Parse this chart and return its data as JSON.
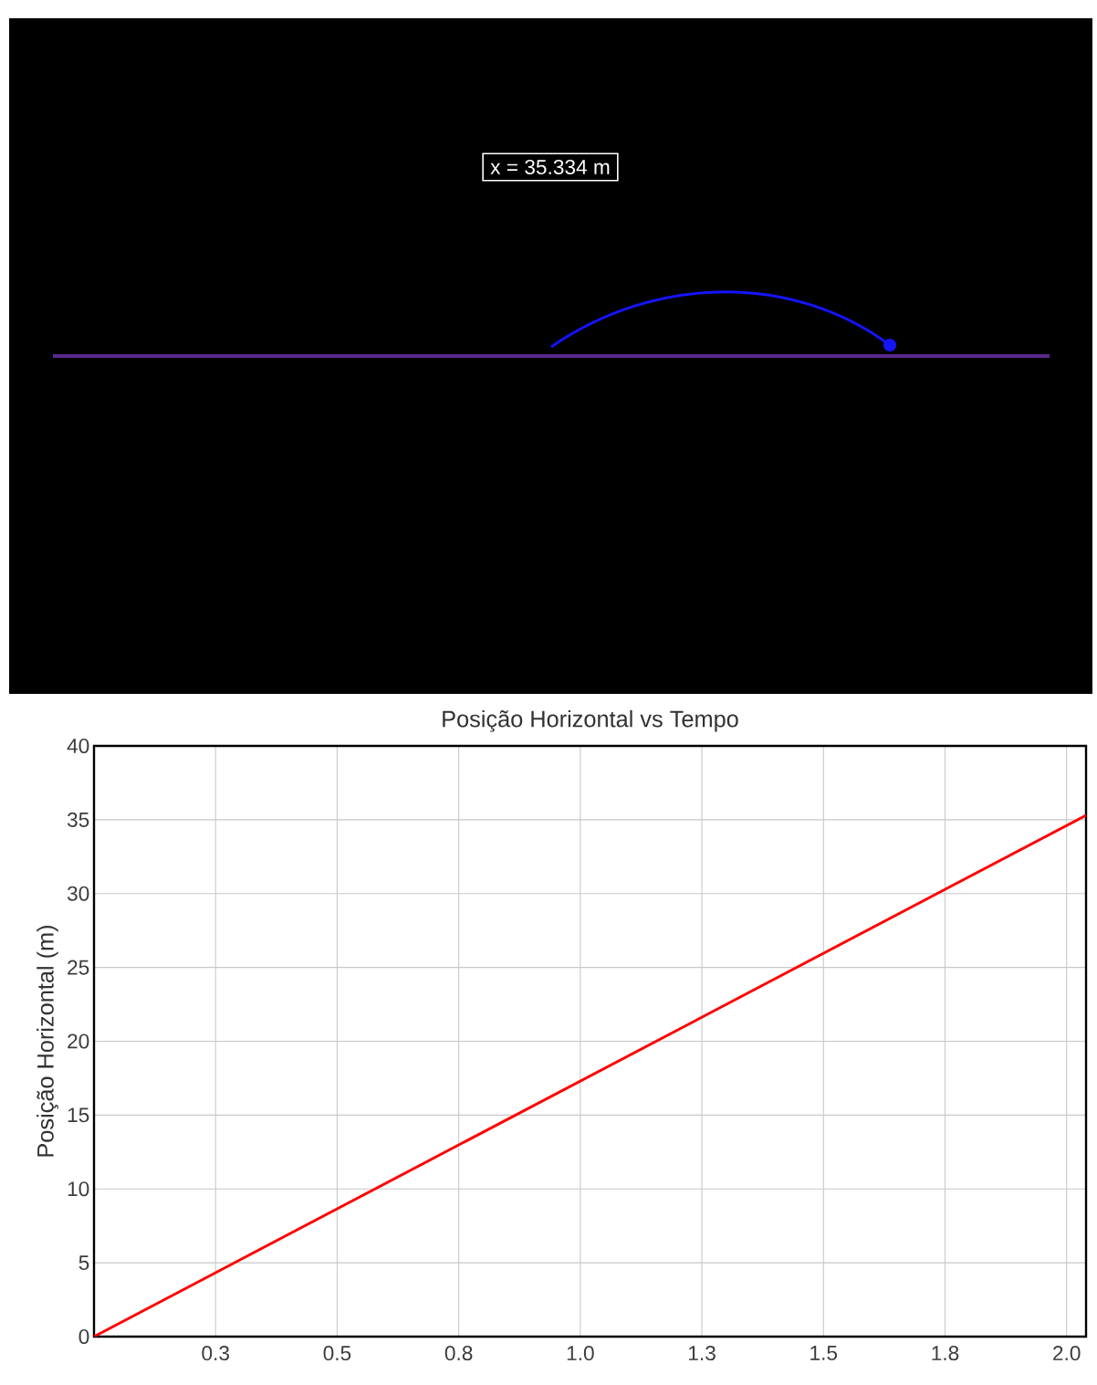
{
  "chart_data": [
    {
      "type": "other",
      "annotations": [
        "x = 35.334 m"
      ]
    },
    {
      "type": "line",
      "title": "Posição Horizontal vs Tempo",
      "ylabel": "Posição Horizontal (m)",
      "x": [
        0,
        2.04
      ],
      "values": [
        0,
        35.3
      ],
      "color": "#ff0000",
      "xlim": [
        0,
        2.04
      ],
      "ylim": [
        0,
        40
      ],
      "xticks": [
        {
          "value": 0.25,
          "label": "0.3"
        },
        {
          "value": 0.5,
          "label": "0.5"
        },
        {
          "value": 0.75,
          "label": "0.8"
        },
        {
          "value": 1.0,
          "label": "1.0"
        },
        {
          "value": 1.25,
          "label": "1.3"
        },
        {
          "value": 1.5,
          "label": "1.5"
        },
        {
          "value": 1.75,
          "label": "1.8"
        },
        {
          "value": 2.0,
          "label": "2.0"
        }
      ],
      "yticks": [
        0,
        5,
        10,
        15,
        20,
        25,
        30,
        35,
        40
      ],
      "grid": true,
      "marker": "none",
      "line_style": "solid"
    }
  ]
}
